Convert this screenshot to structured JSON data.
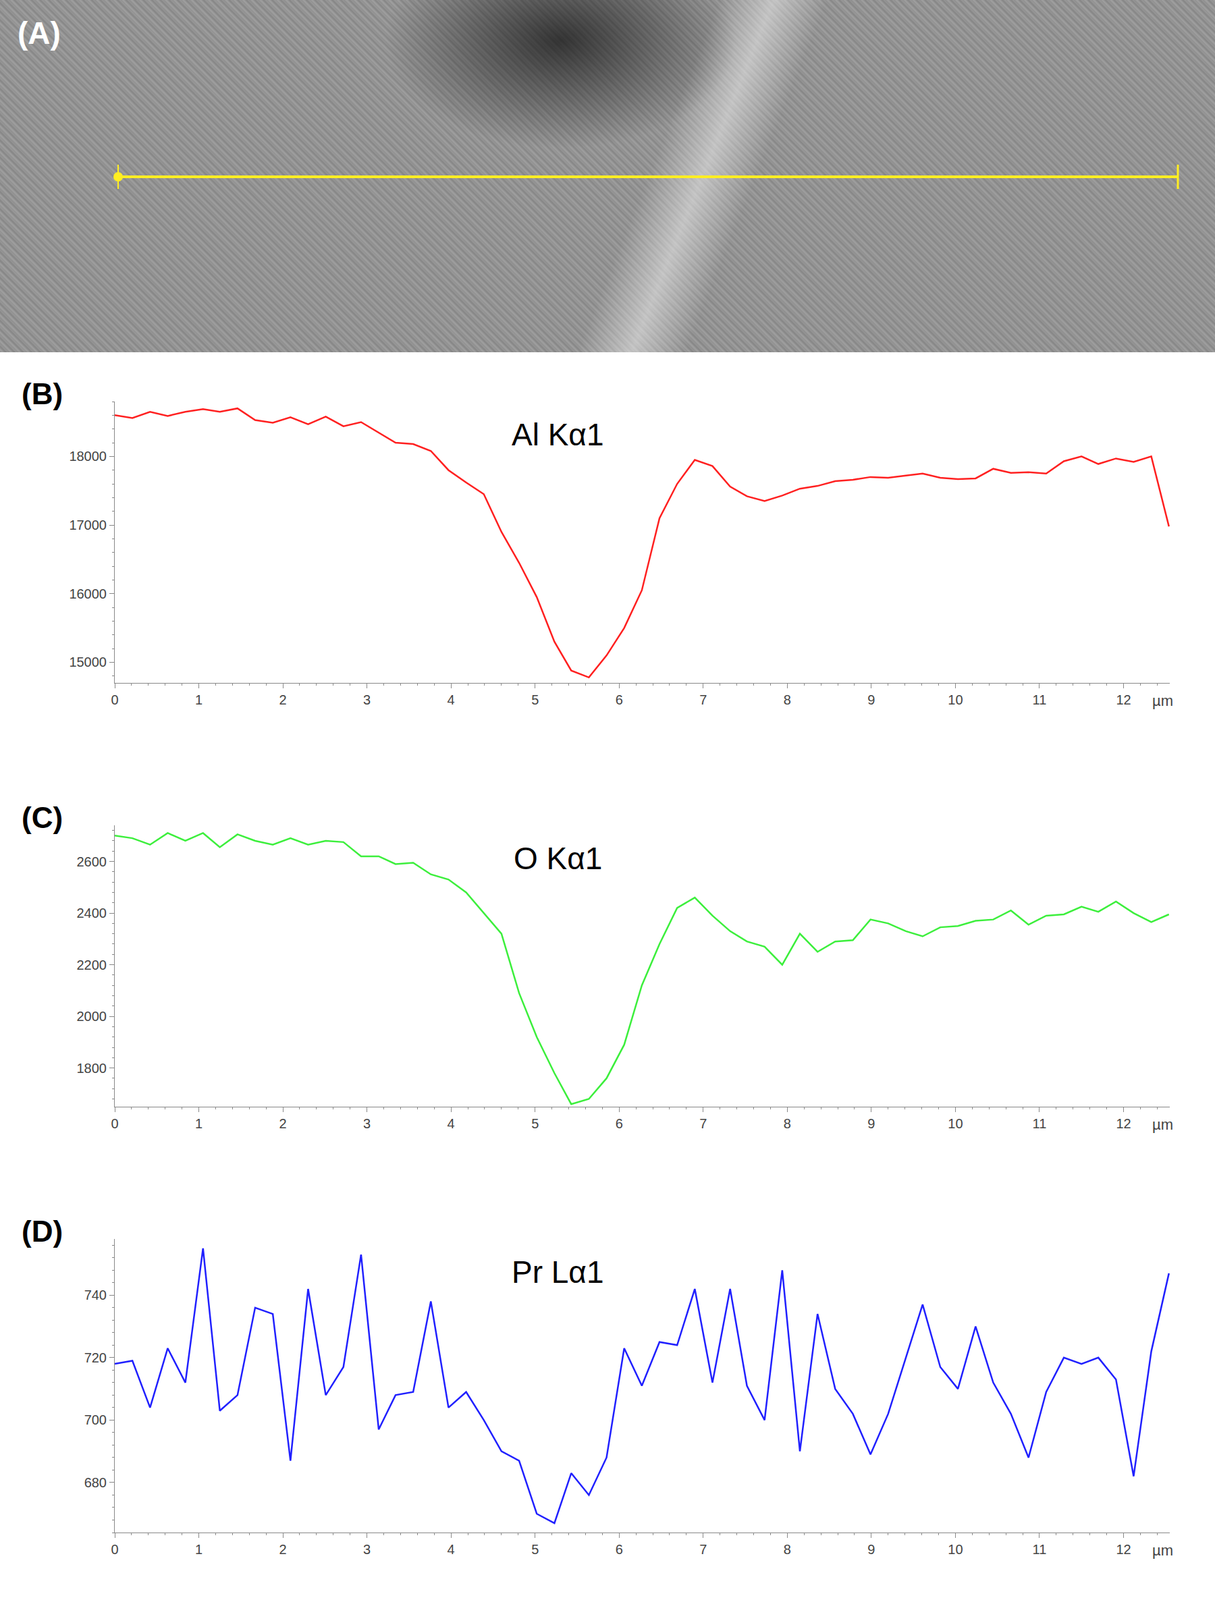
{
  "image_panel": {
    "label": "(A)"
  },
  "chart_data": [
    {
      "label": "(B)",
      "type": "line",
      "title": "Al Kα1",
      "xlabel": "µm",
      "color": "#ff2020",
      "grid": false,
      "x": [
        0,
        0.21,
        0.42,
        0.63,
        0.84,
        1.05,
        1.25,
        1.46,
        1.67,
        1.88,
        2.09,
        2.3,
        2.51,
        2.72,
        2.93,
        3.14,
        3.34,
        3.55,
        3.76,
        3.97,
        4.18,
        4.39,
        4.6,
        4.81,
        5.02,
        5.23,
        5.43,
        5.64,
        5.85,
        6.06,
        6.27,
        6.48,
        6.69,
        6.9,
        7.11,
        7.32,
        7.52,
        7.73,
        7.94,
        8.15,
        8.36,
        8.57,
        8.78,
        8.99,
        9.2,
        9.41,
        9.61,
        9.82,
        10.03,
        10.24,
        10.45,
        10.66,
        10.87,
        11.08,
        11.29,
        11.5,
        11.7,
        11.91,
        12.12,
        12.33,
        12.54
      ],
      "values": [
        18600,
        18560,
        18650,
        18590,
        18650,
        18690,
        18650,
        18700,
        18530,
        18490,
        18570,
        18470,
        18580,
        18440,
        18500,
        18350,
        18200,
        18180,
        18080,
        17800,
        17620,
        17450,
        16900,
        16450,
        15950,
        15300,
        14880,
        14780,
        15100,
        15500,
        16050,
        17100,
        17600,
        17950,
        17860,
        17560,
        17420,
        17350,
        17430,
        17530,
        17570,
        17640,
        17660,
        17700,
        17690,
        17720,
        17750,
        17690,
        17670,
        17680,
        17820,
        17760,
        17770,
        17750,
        17930,
        18000,
        17890,
        17970,
        17920,
        18000,
        16980
      ],
      "xlim": [
        0,
        12.55
      ],
      "xticks": [
        0,
        1,
        2,
        3,
        4,
        5,
        6,
        7,
        8,
        9,
        10,
        11,
        12
      ],
      "ylim": [
        14700,
        18800
      ],
      "yticks": [
        15000,
        16000,
        17000,
        18000
      ]
    },
    {
      "label": "(C)",
      "type": "line",
      "title": "O Kα1",
      "xlabel": "µm",
      "color": "#3cef3c",
      "grid": false,
      "x": [
        0,
        0.21,
        0.42,
        0.63,
        0.84,
        1.05,
        1.25,
        1.46,
        1.67,
        1.88,
        2.09,
        2.3,
        2.51,
        2.72,
        2.93,
        3.14,
        3.34,
        3.55,
        3.76,
        3.97,
        4.18,
        4.39,
        4.6,
        4.81,
        5.02,
        5.23,
        5.43,
        5.64,
        5.85,
        6.06,
        6.27,
        6.48,
        6.69,
        6.9,
        7.11,
        7.32,
        7.52,
        7.73,
        7.94,
        8.15,
        8.36,
        8.57,
        8.78,
        8.99,
        9.2,
        9.41,
        9.61,
        9.82,
        10.03,
        10.24,
        10.45,
        10.66,
        10.87,
        11.08,
        11.29,
        11.5,
        11.7,
        11.91,
        12.12,
        12.33,
        12.54
      ],
      "values": [
        2700,
        2690,
        2665,
        2710,
        2680,
        2710,
        2655,
        2705,
        2680,
        2665,
        2690,
        2665,
        2680,
        2675,
        2620,
        2620,
        2590,
        2595,
        2550,
        2530,
        2480,
        2400,
        2320,
        2090,
        1920,
        1780,
        1660,
        1680,
        1760,
        1890,
        2120,
        2280,
        2420,
        2460,
        2390,
        2330,
        2290,
        2270,
        2200,
        2320,
        2250,
        2290,
        2295,
        2375,
        2360,
        2330,
        2310,
        2345,
        2350,
        2370,
        2375,
        2410,
        2355,
        2390,
        2395,
        2425,
        2405,
        2445,
        2400,
        2365,
        2395
      ],
      "xlim": [
        0,
        12.55
      ],
      "xticks": [
        0,
        1,
        2,
        3,
        4,
        5,
        6,
        7,
        8,
        9,
        10,
        11,
        12
      ],
      "ylim": [
        1650,
        2740
      ],
      "yticks": [
        1800,
        2000,
        2200,
        2400,
        2600
      ]
    },
    {
      "label": "(D)",
      "type": "line",
      "title": "Pr Lα1",
      "xlabel": "µm",
      "color": "#2020ff",
      "grid": false,
      "x": [
        0,
        0.21,
        0.42,
        0.63,
        0.84,
        1.05,
        1.25,
        1.46,
        1.67,
        1.88,
        2.09,
        2.3,
        2.51,
        2.72,
        2.93,
        3.14,
        3.34,
        3.55,
        3.76,
        3.97,
        4.18,
        4.39,
        4.6,
        4.81,
        5.02,
        5.23,
        5.43,
        5.64,
        5.85,
        6.06,
        6.27,
        6.48,
        6.69,
        6.9,
        7.11,
        7.32,
        7.52,
        7.73,
        7.94,
        8.15,
        8.36,
        8.57,
        8.78,
        8.99,
        9.2,
        9.41,
        9.61,
        9.82,
        10.03,
        10.24,
        10.45,
        10.66,
        10.87,
        11.08,
        11.29,
        11.5,
        11.7,
        11.91,
        12.12,
        12.33,
        12.54
      ],
      "values": [
        718,
        719,
        704,
        723,
        712,
        755,
        703,
        708,
        736,
        734,
        687,
        742,
        708,
        717,
        753,
        697,
        708,
        709,
        738,
        704,
        709,
        700,
        690,
        687,
        670,
        667,
        683,
        676,
        688,
        723,
        711,
        725,
        724,
        742,
        712,
        742,
        711,
        700,
        748,
        690,
        734,
        710,
        702,
        689,
        702,
        720,
        737,
        717,
        710,
        730,
        712,
        702,
        688,
        709,
        720,
        718,
        720,
        713,
        682,
        722,
        747
      ],
      "xlim": [
        0,
        12.55
      ],
      "xticks": [
        0,
        1,
        2,
        3,
        4,
        5,
        6,
        7,
        8,
        9,
        10,
        11,
        12
      ],
      "ylim": [
        664,
        758
      ],
      "yticks": [
        680,
        700,
        720,
        740
      ]
    }
  ]
}
